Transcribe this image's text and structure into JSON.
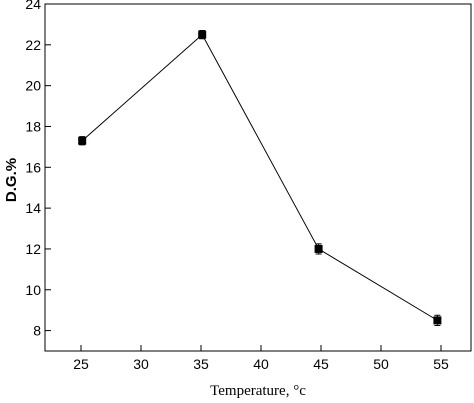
{
  "chart_data": {
    "type": "line",
    "x_label": "Temperature, °c",
    "y_label": "D.G.%",
    "x": [
      25.1,
      35.1,
      44.8,
      54.7
    ],
    "series": [
      {
        "color": "#000000",
        "values": [
          17.3,
          22.5,
          12.0,
          8.5
        ],
        "errors": [
          0.2,
          0.2,
          0.25,
          0.25
        ]
      }
    ],
    "xlim": [
      22,
      57.5
    ],
    "xticks": [
      25,
      30,
      35,
      40,
      45,
      50,
      55
    ],
    "ylim": [
      7,
      24
    ],
    "yticks": [
      8,
      10,
      12,
      14,
      16,
      18,
      20,
      22,
      24
    ]
  }
}
